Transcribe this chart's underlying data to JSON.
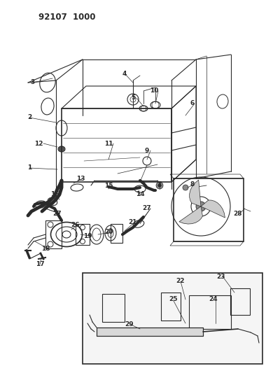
{
  "title": "92107 1000",
  "bg_color": "#ffffff",
  "lc": "#2a2a2a",
  "fig_width": 3.8,
  "fig_height": 5.33,
  "dpi": 100,
  "labels": [
    [
      "3",
      47,
      118
    ],
    [
      "2",
      42,
      168
    ],
    [
      "12",
      55,
      205
    ],
    [
      "1",
      42,
      240
    ],
    [
      "4",
      178,
      105
    ],
    [
      "5",
      190,
      140
    ],
    [
      "10",
      220,
      130
    ],
    [
      "6",
      275,
      148
    ],
    [
      "11",
      155,
      205
    ],
    [
      "9",
      210,
      215
    ],
    [
      "7",
      228,
      263
    ],
    [
      "8",
      275,
      263
    ],
    [
      "13",
      115,
      255
    ],
    [
      "15",
      155,
      265
    ],
    [
      "14",
      200,
      278
    ],
    [
      "16",
      78,
      278
    ],
    [
      "27",
      82,
      305
    ],
    [
      "27",
      210,
      298
    ],
    [
      "26",
      108,
      322
    ],
    [
      "19",
      125,
      337
    ],
    [
      "20",
      155,
      332
    ],
    [
      "21",
      190,
      318
    ],
    [
      "18",
      65,
      355
    ],
    [
      "17",
      57,
      378
    ],
    [
      "28",
      340,
      305
    ],
    [
      "22",
      258,
      402
    ],
    [
      "23",
      315,
      395
    ],
    [
      "24",
      305,
      428
    ],
    [
      "25",
      248,
      428
    ],
    [
      "29",
      185,
      463
    ]
  ]
}
